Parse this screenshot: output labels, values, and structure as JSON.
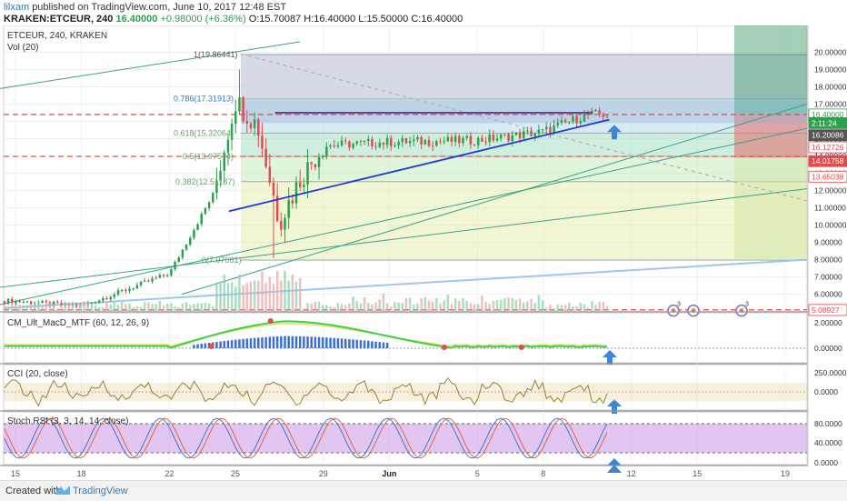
{
  "header": {
    "user": "lilxam",
    "published_text": "published on TradingView.com, June 10, 2017 12:48 EST",
    "symbol": "KRAKEN:ETCEUR, 240",
    "last": "16.40000",
    "change": "+0.98000 (+6.36%)",
    "o": "O:15.70087",
    "h": "H:16.40000",
    "l": "L:15.50000",
    "c": "C:16.40000"
  },
  "pane_labels": {
    "main": "ETCEUR, 240, KRAKEN",
    "vol": "Vol (20)",
    "macd": "CM_Ult_MacD_MTF (60, 12, 26, 9)",
    "cci": "CCI (20, close)",
    "stoch": "Stoch RSI (3, 3, 14, 14, close)"
  },
  "fib_labels": [
    {
      "text": "1(19.86441)",
      "value": 19.86441
    },
    {
      "text": "0.786(17.31913)",
      "value": 17.31913
    },
    {
      "text": "0.618(15.32064)",
      "value": 15.32064
    },
    {
      "text": "0.5(13.97574)",
      "value": 13.97574
    },
    {
      "text": "0.382(12.51187)",
      "value": 12.51187
    },
    {
      "text": "0(7.97061)",
      "value": 7.97061
    }
  ],
  "price_axis": {
    "ticks": [
      "20.00000",
      "19.00000",
      "18.00000",
      "17.00000",
      "16.00000",
      "15.00000",
      "14.00000",
      "13.00000",
      "12.00000",
      "11.00000",
      "10.00000",
      "9.00000",
      "8.00000",
      "7.00000",
      "6.00000",
      "5.00000"
    ],
    "tags": [
      {
        "label": "16.40000",
        "value": 16.4,
        "color": "#ffffff",
        "text_color": "#2aa24b",
        "border": "#2aa24b"
      },
      {
        "label": "2:11:24",
        "value": 15.9,
        "color": "#2aa24b",
        "text_color": "#ffffff",
        "border": "#2aa24b"
      },
      {
        "label": "16.20086",
        "value": 15.2,
        "color": "#555555",
        "text_color": "#ffffff",
        "border": "#555555"
      },
      {
        "label": "16.12726",
        "value": 14.5,
        "color": "#ffffff",
        "text_color": "#e34a4a",
        "border": "#e34a4a"
      },
      {
        "label": "14.01758",
        "value": 13.7,
        "color": "#e34a4a",
        "text_color": "#ffffff",
        "border": "#e34a4a"
      },
      {
        "label": "13.65038",
        "value": 12.8,
        "color": "#ffffff",
        "text_color": "#e34a4a",
        "border": "#e34a4a"
      },
      {
        "label": "5.08927",
        "value": 5.08927,
        "color": "#ffffff",
        "text_color": "#e34a4a",
        "border": "#e34a4a"
      }
    ]
  },
  "macd_axis": [
    "2.00000",
    "0.00000"
  ],
  "cci_axis": [
    "250.0000",
    "0.0000"
  ],
  "stoch_axis": [
    "80.0000",
    "40.0000",
    "0.0000"
  ],
  "x_axis": [
    "15",
    "18",
    "22",
    "25",
    "29",
    "Jun",
    "5",
    "8",
    "12",
    "15",
    "19"
  ],
  "event_badges": [
    "3",
    "3"
  ],
  "footer": {
    "created_with": "Created with",
    "brand": "TradingView"
  },
  "colors": {
    "up": "#2aa24b",
    "down": "#e34a4a",
    "trendline": "#1e3ad8",
    "arrow": "#3b86d6",
    "fib_green": "#8fd8a8",
    "fib_yellow": "#e2ef9a",
    "fib_blue": "#9db9e8",
    "stoch_band": "#c88be6"
  },
  "chart_data": {
    "type": "candlestick",
    "title": "ETCEUR, 240, KRAKEN",
    "x_ticks": [
      "15",
      "18",
      "22",
      "25",
      "29",
      "Jun",
      "5",
      "8",
      "12",
      "15",
      "19"
    ],
    "ylim": [
      5.0,
      20.0
    ],
    "grid": true,
    "key_points": [
      {
        "x": "15",
        "close": 5.6
      },
      {
        "x": "18",
        "close": 5.3
      },
      {
        "x": "22",
        "close": 7.2
      },
      {
        "x": "24",
        "close": 11.8
      },
      {
        "x": "25",
        "close": 17.2
      },
      {
        "x": "26",
        "close": 15.8
      },
      {
        "x": "27",
        "close": 10.2
      },
      {
        "x": "28",
        "close": 12.8
      },
      {
        "x": "29",
        "close": 14.6
      },
      {
        "x": "Jun",
        "close": 14.8
      },
      {
        "x": "5",
        "close": 14.9
      },
      {
        "x": "8",
        "close": 15.4
      },
      {
        "x": "10",
        "close": 16.4
      }
    ]
  }
}
